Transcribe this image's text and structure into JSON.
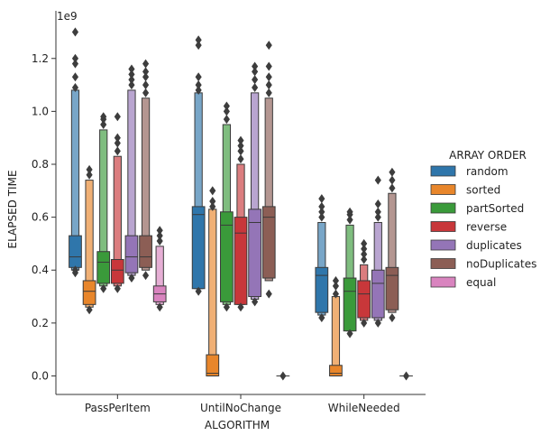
{
  "chart_data": {
    "type": "boxen",
    "xlabel": "ALGORITHM",
    "ylabel": "ELAPSED TIME",
    "y_offset_label": "1e9",
    "ylim": [
      -0.07,
      1.38
    ],
    "y_ticks": [
      {
        "value": 0.0,
        "label": "0.0"
      },
      {
        "value": 0.2,
        "label": "0.2"
      },
      {
        "value": 0.4,
        "label": "0.4"
      },
      {
        "value": 0.6,
        "label": "0.6"
      },
      {
        "value": 0.8,
        "label": "0.8"
      },
      {
        "value": 1.0,
        "label": "1.0"
      },
      {
        "value": 1.2,
        "label": "1.2"
      }
    ],
    "categories": [
      "PassPerItem",
      "UntilNoChange",
      "WhileNeeded"
    ],
    "legend": {
      "title": "ARRAY ORDER",
      "placement": "right",
      "entries": [
        {
          "label": "random",
          "color": "#2f76ab"
        },
        {
          "label": "sorted",
          "color": "#e8862b"
        },
        {
          "label": "partSorted",
          "color": "#3a9a3a"
        },
        {
          "label": "reverse",
          "color": "#c8373a"
        },
        {
          "label": "duplicates",
          "color": "#9475b7"
        },
        {
          "label": "noDuplicates",
          "color": "#8c5e55"
        },
        {
          "label": "equal",
          "color": "#d984bf"
        }
      ]
    },
    "series": [
      {
        "color": "#2f76ab",
        "groups": [
          {
            "boxes": [
              [
                0.41,
                0.53
              ],
              [
                0.4,
                1.08
              ]
            ],
            "median": 0.45,
            "outliers": [
              0.39,
              0.4,
              1.09,
              1.13,
              1.18,
              1.2,
              1.3
            ]
          },
          {
            "boxes": [
              [
                0.33,
                0.64
              ],
              [
                0.33,
                1.07
              ]
            ],
            "median": 0.61,
            "outliers": [
              0.32,
              1.08,
              1.1,
              1.13,
              1.25,
              1.27
            ]
          },
          {
            "boxes": [
              [
                0.24,
                0.41
              ],
              [
                0.23,
                0.58
              ]
            ],
            "median": 0.38,
            "outliers": [
              0.22,
              0.6,
              0.62,
              0.64,
              0.67
            ]
          }
        ]
      },
      {
        "color": "#e8862b",
        "groups": [
          {
            "boxes": [
              [
                0.27,
                0.36
              ],
              [
                0.26,
                0.74
              ]
            ],
            "median": 0.32,
            "outliers": [
              0.25,
              0.76,
              0.78
            ]
          },
          {
            "boxes": [
              [
                0.0,
                0.08
              ],
              [
                0.0,
                0.63
              ]
            ],
            "median": 0.01,
            "outliers": [
              0.64,
              0.66,
              0.7
            ]
          },
          {
            "boxes": [
              [
                0.0,
                0.04
              ],
              [
                0.0,
                0.3
              ]
            ],
            "median": 0.01,
            "outliers": [
              0.31,
              0.34,
              0.36
            ]
          }
        ]
      },
      {
        "color": "#3a9a3a",
        "groups": [
          {
            "boxes": [
              [
                0.35,
                0.47
              ],
              [
                0.34,
                0.93
              ]
            ],
            "median": 0.43,
            "outliers": [
              0.33,
              0.95,
              0.97,
              0.98
            ]
          },
          {
            "boxes": [
              [
                0.28,
                0.62
              ],
              [
                0.27,
                0.95
              ]
            ],
            "median": 0.57,
            "outliers": [
              0.26,
              0.97,
              1.0,
              1.02
            ]
          },
          {
            "boxes": [
              [
                0.17,
                0.37
              ],
              [
                0.17,
                0.57
              ]
            ],
            "median": 0.32,
            "outliers": [
              0.16,
              0.59,
              0.61,
              0.62
            ]
          }
        ]
      },
      {
        "color": "#c8373a",
        "groups": [
          {
            "boxes": [
              [
                0.35,
                0.44
              ],
              [
                0.34,
                0.83
              ]
            ],
            "median": 0.4,
            "outliers": [
              0.33,
              0.85,
              0.88,
              0.9,
              0.98
            ]
          },
          {
            "boxes": [
              [
                0.27,
                0.6
              ],
              [
                0.27,
                0.8
              ]
            ],
            "median": 0.54,
            "outliers": [
              0.26,
              0.82,
              0.85,
              0.87,
              0.89
            ]
          },
          {
            "boxes": [
              [
                0.22,
                0.36
              ],
              [
                0.21,
                0.42
              ]
            ],
            "median": 0.31,
            "outliers": [
              0.2,
              0.44,
              0.46,
              0.48,
              0.5
            ]
          }
        ]
      },
      {
        "color": "#9475b7",
        "groups": [
          {
            "boxes": [
              [
                0.39,
                0.53
              ],
              [
                0.38,
                1.08
              ]
            ],
            "median": 0.45,
            "outliers": [
              0.37,
              1.1,
              1.12,
              1.14,
              1.16
            ]
          },
          {
            "boxes": [
              [
                0.3,
                0.63
              ],
              [
                0.29,
                1.07
              ]
            ],
            "median": 0.58,
            "outliers": [
              0.28,
              1.09,
              1.12,
              1.15,
              1.17
            ]
          },
          {
            "boxes": [
              [
                0.22,
                0.4
              ],
              [
                0.21,
                0.58
              ]
            ],
            "median": 0.35,
            "outliers": [
              0.2,
              0.6,
              0.62,
              0.65,
              0.74
            ]
          }
        ]
      },
      {
        "color": "#8c5e55",
        "groups": [
          {
            "boxes": [
              [
                0.41,
                0.53
              ],
              [
                0.4,
                1.05
              ]
            ],
            "median": 0.45,
            "outliers": [
              0.38,
              1.07,
              1.1,
              1.13,
              1.15,
              1.18
            ]
          },
          {
            "boxes": [
              [
                0.37,
                0.64
              ],
              [
                0.36,
                1.05
              ]
            ],
            "median": 0.6,
            "outliers": [
              0.31,
              1.07,
              1.1,
              1.13,
              1.17,
              1.25
            ]
          },
          {
            "boxes": [
              [
                0.25,
                0.41
              ],
              [
                0.24,
                0.69
              ]
            ],
            "median": 0.38,
            "outliers": [
              0.22,
              0.71,
              0.74,
              0.77
            ]
          }
        ]
      },
      {
        "color": "#d984bf",
        "groups": [
          {
            "boxes": [
              [
                0.28,
                0.34
              ],
              [
                0.27,
                0.49
              ]
            ],
            "median": 0.31,
            "outliers": [
              0.26,
              0.51,
              0.53,
              0.55
            ]
          },
          {
            "boxes": [
              [
                0.0,
                0.0
              ],
              [
                0.0,
                0.0
              ]
            ],
            "median": 0.0,
            "outliers": [
              0.0
            ]
          },
          {
            "boxes": [
              [
                0.0,
                0.0
              ],
              [
                0.0,
                0.0
              ]
            ],
            "median": 0.0,
            "outliers": [
              0.0
            ]
          }
        ]
      }
    ]
  }
}
